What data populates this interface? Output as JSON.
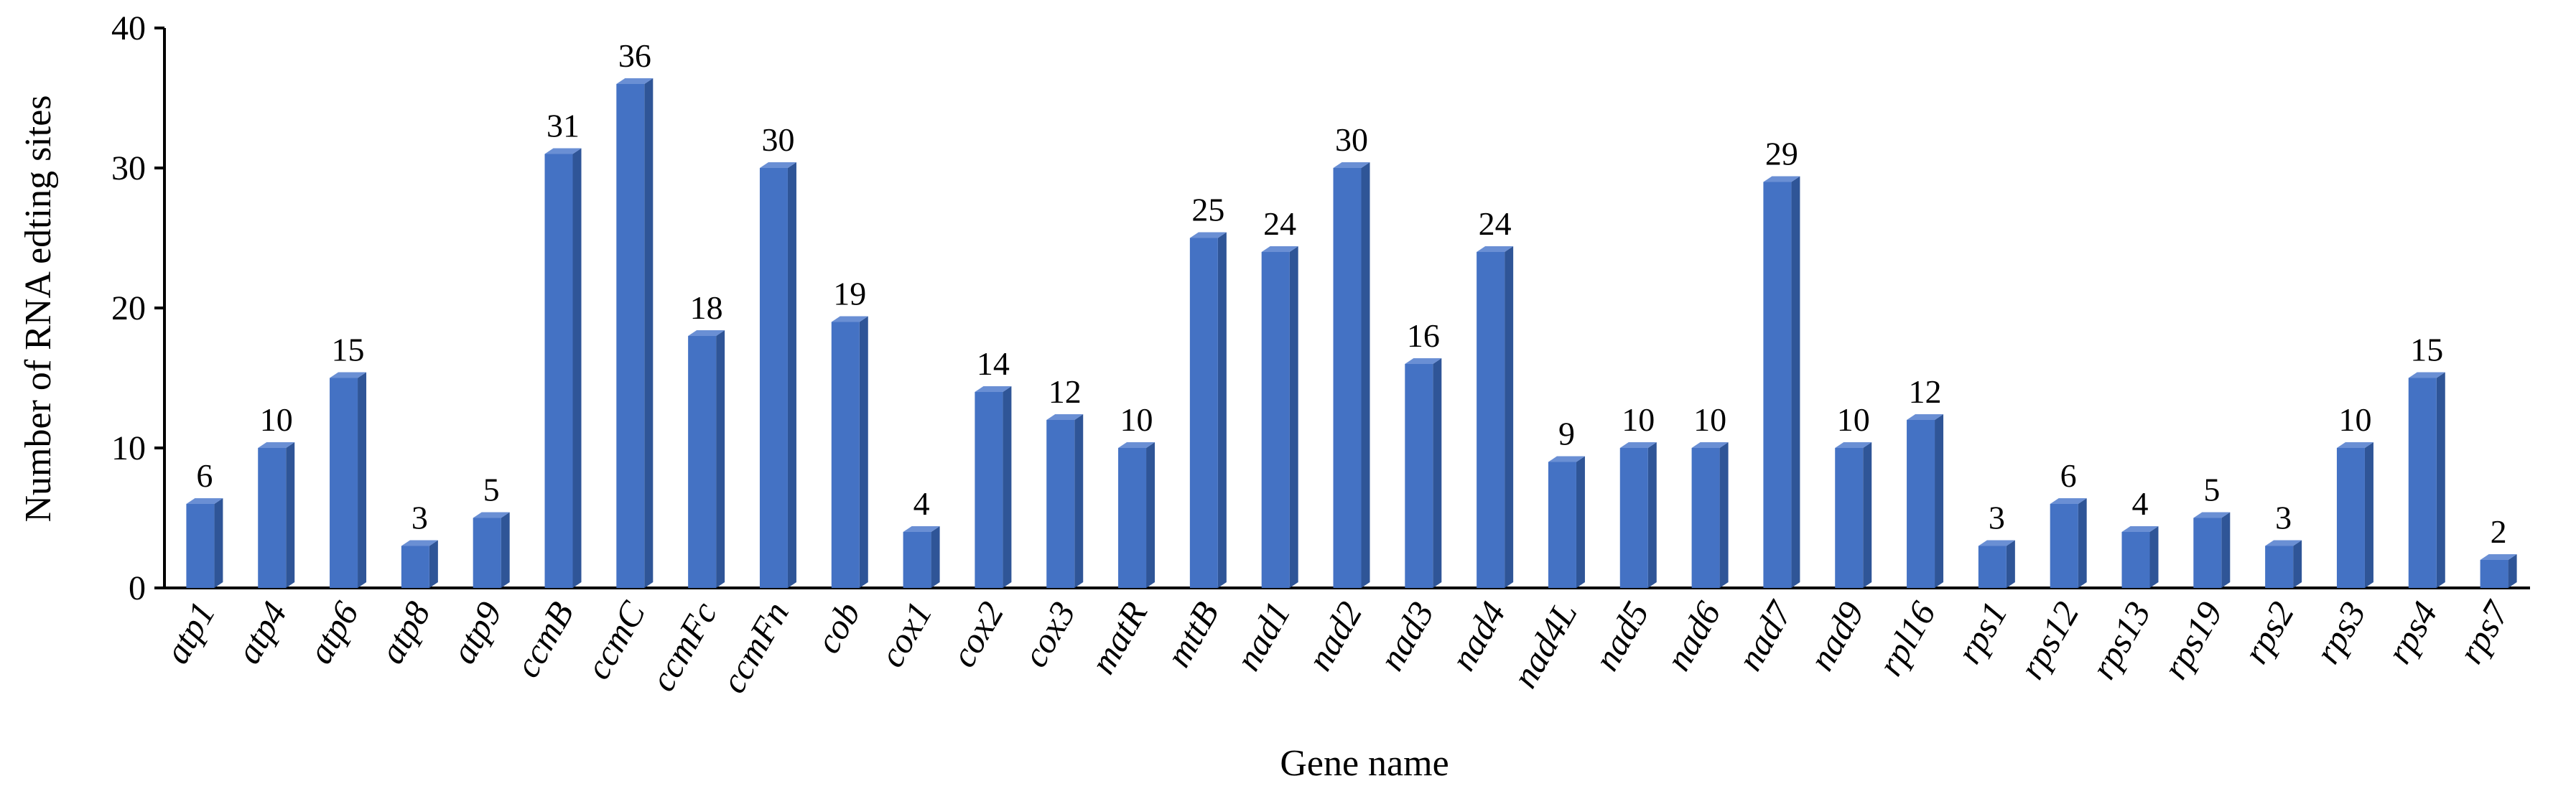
{
  "chart_data": {
    "type": "bar",
    "x_label": "Gene name",
    "y_label": "Number of  RNA edting sites",
    "categories": [
      "atp1",
      "atp4",
      "atp6",
      "atp8",
      "atp9",
      "ccmB",
      "ccmC",
      "ccmFc",
      "ccmFn",
      "cob",
      "cox1",
      "cox2",
      "cox3",
      "matR",
      "mttB",
      "nad1",
      "nad2",
      "nad3",
      "nad4",
      "nad4L",
      "nad5",
      "nad6",
      "nad7",
      "nad9",
      "rpl16",
      "rps1",
      "rps12",
      "rps13",
      "rps19",
      "rps2",
      "rps3",
      "rps4",
      "rps7"
    ],
    "values": [
      6,
      10,
      15,
      3,
      5,
      31,
      36,
      18,
      30,
      19,
      4,
      14,
      12,
      10,
      25,
      24,
      30,
      16,
      24,
      9,
      10,
      10,
      29,
      10,
      12,
      3,
      6,
      4,
      5,
      3,
      10,
      15,
      2
    ],
    "color": "#4472c4",
    "ylim": [
      0,
      40
    ],
    "yticks": [
      0,
      10,
      20,
      30,
      40
    ],
    "grid": false
  }
}
